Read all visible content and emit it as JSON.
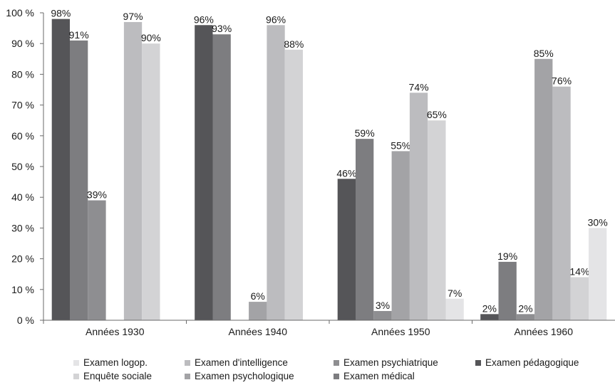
{
  "chart_data": {
    "type": "bar",
    "title": "",
    "xlabel": "",
    "ylabel": "",
    "ylim": [
      0,
      100
    ],
    "yticks": [
      "0 %",
      "10 %",
      "20 %",
      "30 %",
      "40 %",
      "50 %",
      "60 %",
      "70 %",
      "80 %",
      "90 %",
      "100 %"
    ],
    "categories": [
      "Années 1930",
      "Années 1940",
      "Années 1950",
      "Années 1960"
    ],
    "grid": false,
    "legend_position": "bottom",
    "series": [
      {
        "name": "Examen pédagogique",
        "color": "#555558",
        "values": [
          98,
          96,
          46,
          2
        ],
        "labels": [
          "98%",
          "96%",
          "46%",
          "2%"
        ]
      },
      {
        "name": "Examen médical",
        "color": "#7d7d80",
        "values": [
          91,
          93,
          59,
          19
        ],
        "labels": [
          "91%",
          "93%",
          "59%",
          "19%"
        ]
      },
      {
        "name": "Examen psychiatrique",
        "color": "#8e8e91",
        "values": [
          39,
          null,
          3,
          2
        ],
        "labels": [
          "39%",
          null,
          "3%",
          "2%"
        ]
      },
      {
        "name": "Examen psychologique",
        "color": "#a3a3a6",
        "values": [
          null,
          6,
          55,
          85
        ],
        "labels": [
          null,
          "6%",
          "55%",
          "85%"
        ]
      },
      {
        "name": "Examen d'intelligence",
        "color": "#bcbcbf",
        "values": [
          97,
          96,
          74,
          76
        ],
        "labels": [
          "97%",
          "96%",
          "74%",
          "76%"
        ]
      },
      {
        "name": "Enquête sociale",
        "color": "#d3d3d5",
        "values": [
          90,
          88,
          65,
          14
        ],
        "labels": [
          "90%",
          "88%",
          "65%",
          "14%"
        ]
      },
      {
        "name": "Examen logop.",
        "color": "#e4e4e6",
        "values": [
          null,
          null,
          7,
          30
        ],
        "labels": [
          null,
          null,
          "7%",
          "30%"
        ]
      }
    ]
  },
  "legend": {
    "row1": [
      {
        "label": "Examen logop.",
        "color": "#e4e4e6"
      },
      {
        "label": "Examen d'intelligence",
        "color": "#bcbcbf"
      },
      {
        "label": "Examen psychiatrique",
        "color": "#8e8e91"
      },
      {
        "label": "Examen pédagogique",
        "color": "#555558"
      }
    ],
    "row2": [
      {
        "label": "Enquête sociale",
        "color": "#d3d3d5"
      },
      {
        "label": "Examen psychologique",
        "color": "#a3a3a6"
      },
      {
        "label": "Examen médical",
        "color": "#7d7d80"
      }
    ]
  }
}
